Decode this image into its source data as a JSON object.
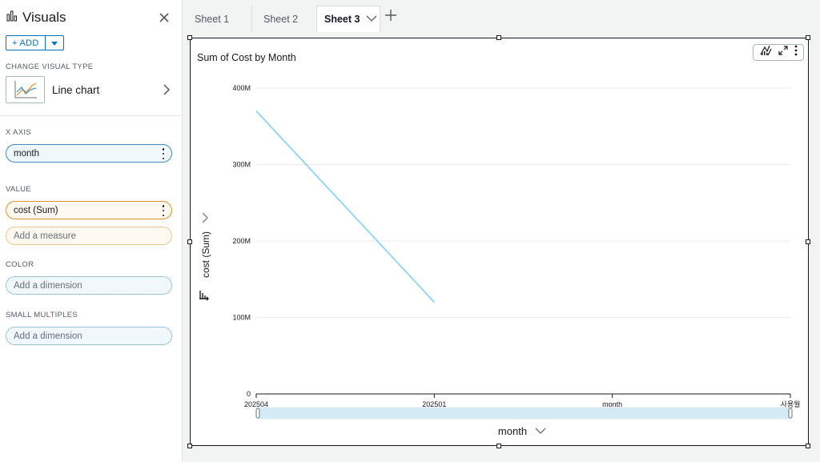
{
  "panel": {
    "title": "Visuals",
    "add_label": "+ ADD",
    "change_type_label": "CHANGE VISUAL TYPE",
    "visual_type": "Line chart",
    "x_axis_label": "X AXIS",
    "x_axis_field": "month",
    "value_label": "VALUE",
    "value_field": "cost (Sum)",
    "value_placeholder": "Add a measure",
    "color_label": "COLOR",
    "color_placeholder": "Add a dimension",
    "small_multiples_label": "SMALL MULTIPLES",
    "small_multiples_placeholder": "Add a dimension"
  },
  "tabs": [
    {
      "label": "Sheet 1"
    },
    {
      "label": "Sheet 2"
    },
    {
      "label": "Sheet 3"
    }
  ],
  "icons": [
    "bar-chart-icon",
    "close-icon",
    "caret-down-icon",
    "chevron-right-icon",
    "kebab-icon",
    "plus-icon",
    "insights-icon",
    "expand-icon",
    "sort-icon"
  ],
  "colors": {
    "accent": "#0073bb",
    "line": "#8fd3ec",
    "measure": "#d9922b",
    "dimension": "#3f8cb8"
  },
  "chart_data": {
    "type": "line",
    "title": "Sum of Cost by Month",
    "xlabel": "month",
    "ylabel": "cost (Sum)",
    "categories": [
      "202504",
      "202501",
      "month",
      "사용월"
    ],
    "series": [
      {
        "values": [
          370000000,
          120000000,
          null,
          null
        ]
      }
    ],
    "y_ticks": [
      "0",
      "100M",
      "200M",
      "300M",
      "400M"
    ],
    "y_tick_values": [
      0,
      100000000,
      200000000,
      300000000,
      400000000
    ],
    "ylim": [
      0,
      400000000
    ],
    "grid": true,
    "legend": "none"
  }
}
